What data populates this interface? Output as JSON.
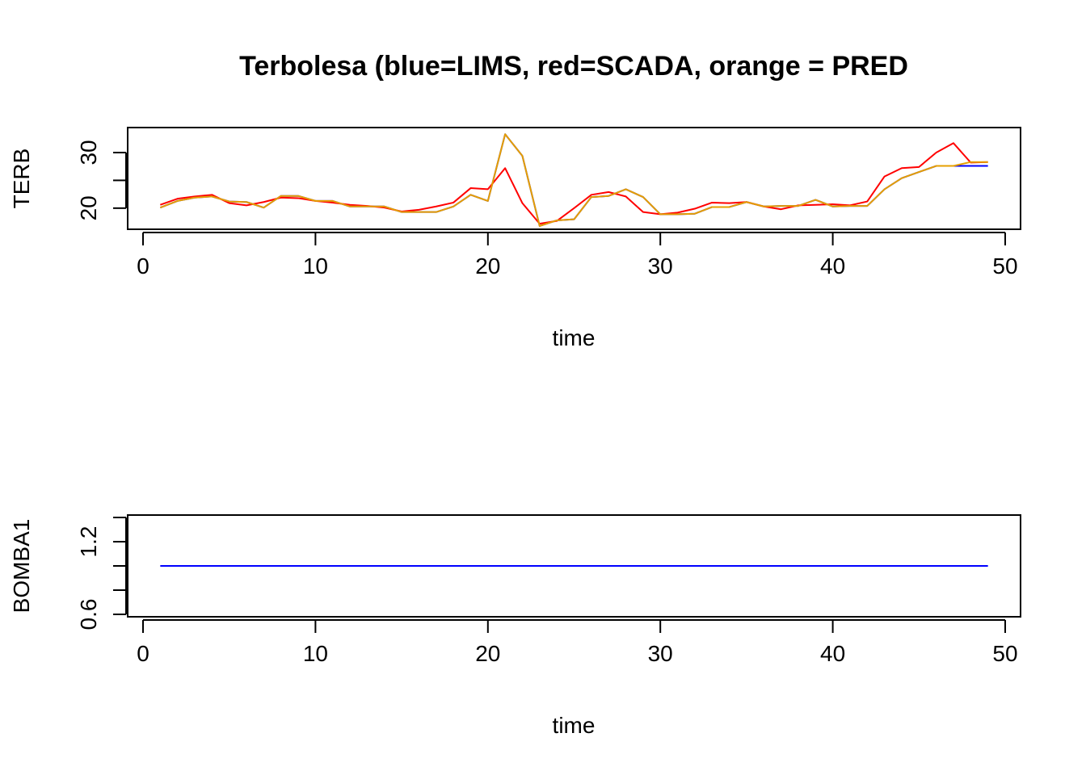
{
  "title": "Terbolesa (blue=LIMS, red=SCADA, orange = PRED",
  "colors": {
    "LIMS": "#0000ff",
    "SCADA": "#ff0000",
    "PRED": "#e69f00"
  },
  "chart_data": [
    {
      "type": "line",
      "xlabel": "time",
      "ylabel": "TERB",
      "xlim": [
        0,
        50
      ],
      "ylim": [
        16.2,
        34.5
      ],
      "x_ticks": [
        0,
        10,
        20,
        30,
        40,
        50
      ],
      "y_ticks": [
        20,
        25,
        30
      ],
      "y_tick_labels": [
        "20",
        "",
        "30"
      ],
      "grid": false,
      "x": [
        1,
        2,
        3,
        4,
        5,
        6,
        7,
        8,
        9,
        10,
        11,
        12,
        13,
        14,
        15,
        16,
        17,
        18,
        19,
        20,
        21,
        22,
        23,
        24,
        25,
        26,
        27,
        28,
        29,
        30,
        31,
        32,
        33,
        34,
        35,
        36,
        37,
        38,
        39,
        40,
        41,
        42,
        43,
        44,
        45,
        46,
        47,
        48,
        49
      ],
      "series": [
        {
          "name": "LIMS",
          "color": "#0000ff",
          "values": [
            20.1,
            21.3,
            21.9,
            22.1,
            21.2,
            21.1,
            20.1,
            22.2,
            22.2,
            21.3,
            21.3,
            20.3,
            20.3,
            20.3,
            19.3,
            19.3,
            19.3,
            20.3,
            22.4,
            21.3,
            33.3,
            29.4,
            16.8,
            17.8,
            18.0,
            22.0,
            22.2,
            23.4,
            22.0,
            18.9,
            18.9,
            19.0,
            20.2,
            20.2,
            21.1,
            20.3,
            20.4,
            20.4,
            21.5,
            20.3,
            20.4,
            20.4,
            23.4,
            25.4,
            26.5,
            27.6,
            27.6,
            27.6,
            27.6
          ]
        },
        {
          "name": "SCADA",
          "color": "#ff0000",
          "values": [
            20.6,
            21.7,
            22.1,
            22.4,
            20.9,
            20.5,
            21.1,
            21.9,
            21.8,
            21.3,
            21.0,
            20.6,
            20.4,
            20.1,
            19.4,
            19.7,
            20.3,
            21.0,
            23.6,
            23.4,
            27.2,
            20.9,
            17.2,
            17.7,
            20.0,
            22.4,
            22.9,
            22.1,
            19.3,
            18.9,
            19.2,
            19.9,
            21.0,
            20.9,
            21.1,
            20.3,
            19.8,
            20.5,
            20.6,
            20.7,
            20.5,
            21.2,
            25.7,
            27.2,
            27.4,
            30.0,
            31.7,
            28.2,
            28.3
          ]
        },
        {
          "name": "PRED",
          "color": "#e69f00",
          "values": [
            20.1,
            21.3,
            21.9,
            22.1,
            21.2,
            21.1,
            20.1,
            22.2,
            22.2,
            21.3,
            21.3,
            20.3,
            20.3,
            20.3,
            19.3,
            19.3,
            19.3,
            20.3,
            22.4,
            21.3,
            33.3,
            29.4,
            16.8,
            17.8,
            18.0,
            22.0,
            22.2,
            23.4,
            22.0,
            18.9,
            18.9,
            19.0,
            20.2,
            20.2,
            21.1,
            20.3,
            20.4,
            20.4,
            21.5,
            20.3,
            20.4,
            20.4,
            23.4,
            25.4,
            26.5,
            27.6,
            27.6,
            28.3,
            28.3
          ]
        }
      ]
    },
    {
      "type": "line",
      "xlabel": "time",
      "ylabel": "BOMBA1",
      "xlim": [
        0,
        50
      ],
      "ylim": [
        0.58,
        1.42
      ],
      "x_ticks": [
        0,
        10,
        20,
        30,
        40,
        50
      ],
      "y_ticks": [
        0.6,
        0.8,
        1.0,
        1.2,
        1.4
      ],
      "y_tick_labels": [
        "0.6",
        "",
        "",
        "1.2",
        ""
      ],
      "grid": false,
      "x": [
        1,
        49
      ],
      "series": [
        {
          "name": "LIMS",
          "color": "#0000ff",
          "values": [
            1.0,
            1.0
          ]
        }
      ]
    }
  ]
}
